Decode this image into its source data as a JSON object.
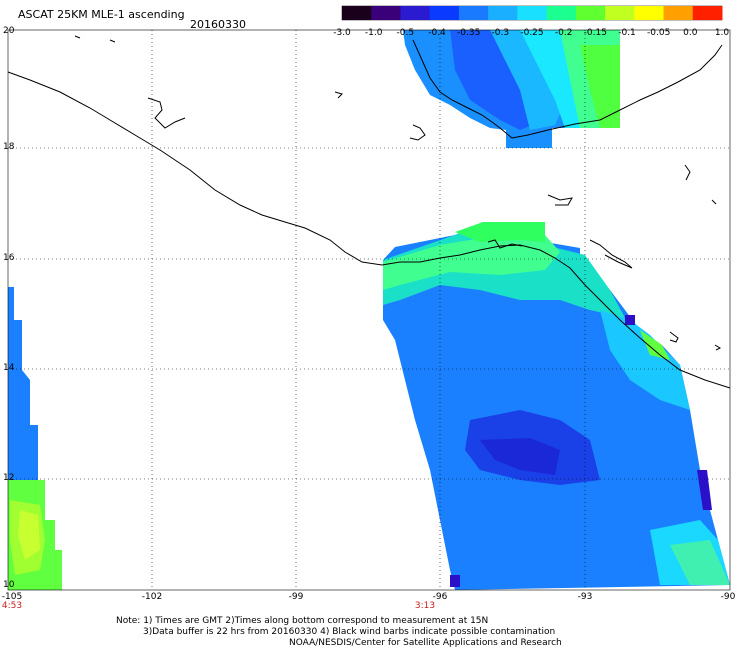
{
  "header": {
    "title": "ASCAT 25KM MLE-1 ascending",
    "date": "20160330"
  },
  "colorbar": {
    "labels": [
      "-3.0",
      "-1.0",
      "-0.5",
      "-0.4",
      "-0.35",
      "-0.3",
      "-0.25",
      "-0.2",
      "-0.15",
      "-0.1",
      "-0.05",
      "0.0",
      "1.0"
    ],
    "colors": [
      "#1a001a",
      "#3a007a",
      "#2a1ad0",
      "#0a3aff",
      "#1a7aff",
      "#1ab0ff",
      "#1ae0ff",
      "#1aff90",
      "#60ff30",
      "#c0ff20",
      "#ffff00",
      "#ffa000",
      "#ff2000"
    ]
  },
  "map": {
    "lat_labels": [
      "20",
      "18",
      "16",
      "14",
      "12",
      "10"
    ],
    "lon_labels": [
      "-105",
      "-102",
      "-99",
      "-96",
      "-93",
      "-90"
    ],
    "times": [
      "4:53",
      "3:13"
    ]
  },
  "footer": {
    "note_line1": "Note: 1) Times are GMT 2)Times along bottom correspond to measurement at 15N",
    "note_line2": "3)Data buffer is 22 hrs from 20160330 4) Black wind barbs indicate possible contamination",
    "note_line3": "NOAA/NESDIS/Center for Satellite Applications and Research"
  }
}
